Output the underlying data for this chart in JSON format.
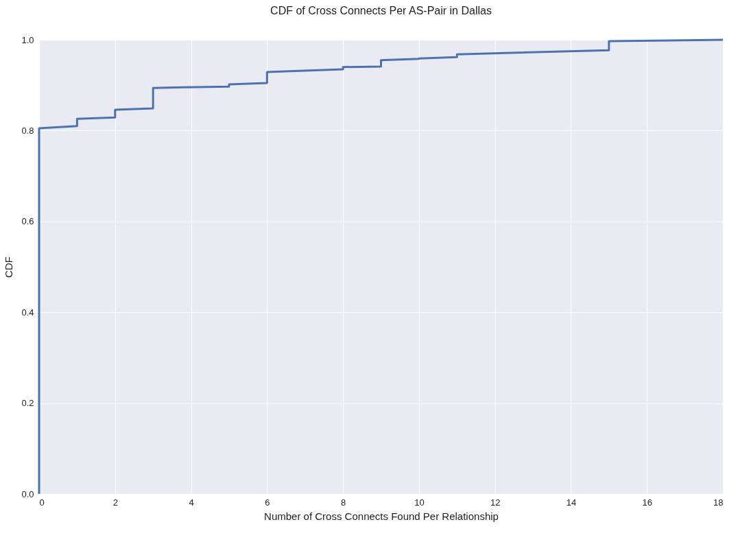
{
  "chart_data": {
    "type": "line",
    "title": "CDF of Cross Connects Per AS-Pair in Dallas",
    "xlabel": "Number of Cross Connects Found Per Relationship",
    "ylabel": "CDF",
    "series": [
      {
        "color": "#4c72b0",
        "x": [
          0,
          0,
          1,
          1,
          2,
          2,
          3,
          3,
          5,
          5,
          6,
          6,
          8,
          8,
          9,
          9,
          10,
          10,
          11,
          11,
          15,
          15,
          18
        ],
        "values": [
          0,
          0.805,
          0.81,
          0.826,
          0.829,
          0.846,
          0.849,
          0.894,
          0.897,
          0.902,
          0.905,
          0.929,
          0.935,
          0.94,
          0.941,
          0.955,
          0.958,
          0.959,
          0.962,
          0.968,
          0.977,
          0.997,
          1.0
        ]
      }
    ],
    "xlim": [
      0,
      18
    ],
    "xticks": [
      0,
      2,
      4,
      6,
      8,
      10,
      12,
      14,
      16,
      18
    ],
    "ylim": [
      0,
      1
    ],
    "yticks": [
      {
        "value": 0,
        "label": "0.0"
      },
      0.2,
      0.4,
      0.6,
      0.8,
      {
        "value": 1,
        "label": "1.0"
      }
    ],
    "grid": true,
    "marker": "none",
    "line_style": "solid"
  }
}
